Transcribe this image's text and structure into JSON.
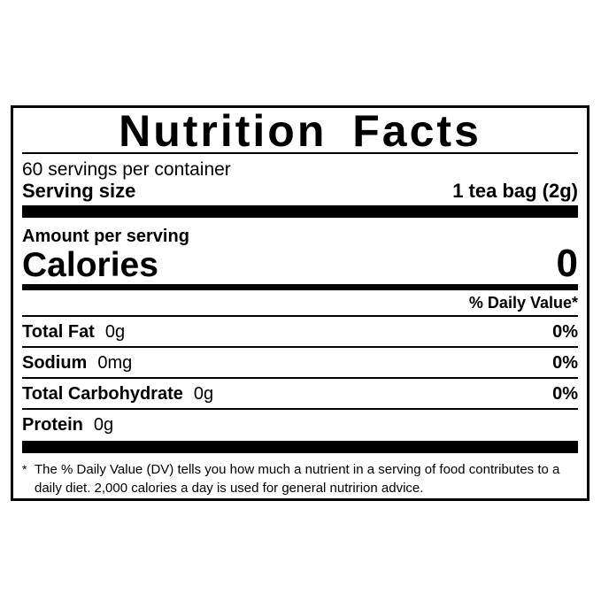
{
  "label": {
    "title": "Nutrition Facts",
    "servings_per_container": "60 servings per container",
    "serving_size": {
      "label": "Serving size",
      "value": "1 tea bag (2g)"
    },
    "amount_per_serving": "Amount per serving",
    "calories": {
      "label": "Calories",
      "value": "0"
    },
    "daily_value_header": "% Daily Value*",
    "nutrients": [
      {
        "name": "Total Fat",
        "amount": "0g",
        "dv": "0%"
      },
      {
        "name": "Sodium",
        "amount": "0mg",
        "dv": "0%"
      },
      {
        "name": "Total Carbohydrate",
        "amount": "0g",
        "dv": "0%"
      },
      {
        "name": "Protein",
        "amount": "0g",
        "dv": ""
      }
    ],
    "footnote": {
      "marker": "*",
      "text": "The % Daily Value (DV) tells you how much a nutrient in a serving of food contributes to a daily diet. 2,000 calories a day is used for general nutririon advice."
    }
  },
  "colors": {
    "text": "#000000",
    "background": "#ffffff",
    "rule": "#000000"
  }
}
